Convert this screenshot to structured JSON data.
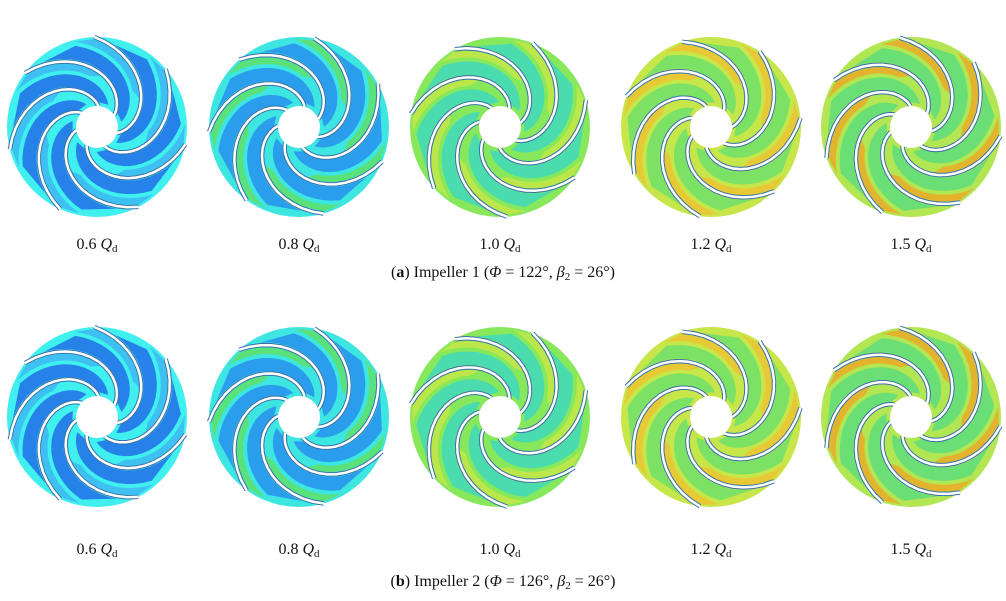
{
  "figure": {
    "rows": [
      {
        "labels": [
          {
            "value": "0.6",
            "symbol": "Q",
            "subscript": "d"
          },
          {
            "value": "0.8",
            "symbol": "Q",
            "subscript": "d"
          },
          {
            "value": "1.0",
            "symbol": "Q",
            "subscript": "d"
          },
          {
            "value": "1.2",
            "symbol": "Q",
            "subscript": "d"
          },
          {
            "value": "1.5",
            "symbol": "Q",
            "subscript": "d"
          }
        ],
        "caption": [
          "(",
          "a",
          ") Impeller 1 (",
          "Φ",
          " = 122°, ",
          "β",
          "2",
          " = 26°)"
        ]
      },
      {
        "labels": [
          {
            "value": "0.6",
            "symbol": "Q",
            "subscript": "d"
          },
          {
            "value": "0.8",
            "symbol": "Q",
            "subscript": "d"
          },
          {
            "value": "1.0",
            "symbol": "Q",
            "subscript": "d"
          },
          {
            "value": "1.2",
            "symbol": "Q",
            "subscript": "d"
          },
          {
            "value": "1.5",
            "symbol": "Q",
            "subscript": "d"
          }
        ],
        "caption": [
          "(",
          "b",
          ") Impeller 2 (",
          "Φ",
          " = 126°, ",
          "β",
          "2",
          " = 26°)"
        ]
      }
    ]
  }
}
